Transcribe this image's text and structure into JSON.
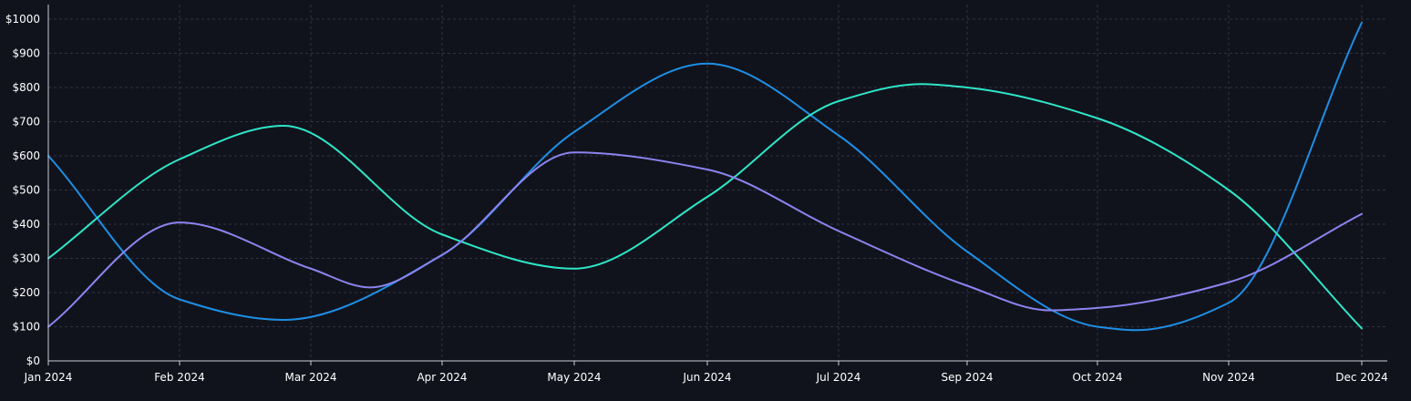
{
  "chart_data": {
    "type": "line",
    "title": "",
    "xlabel": "",
    "ylabel": "",
    "x": [
      "Jan 2024",
      "Feb 2024",
      "Mar 2024",
      "Apr 2024",
      "May 2024",
      "Jun 2024",
      "Jul 2024",
      "Sep 2024",
      "Oct 2024",
      "Nov 2024",
      "Dec 2024"
    ],
    "x_ticks": [
      "Jan 2024",
      "Feb 2024",
      "Mar 2024",
      "Apr 2024",
      "May 2024",
      "Jun 2024",
      "Jul 2024",
      "Sep 2024",
      "Oct 2024",
      "Nov 2024",
      "Dec 2024"
    ],
    "y_ticks": [
      "$0",
      "$100",
      "$200",
      "$300",
      "$400",
      "$500",
      "$600",
      "$700",
      "$800",
      "$900",
      "$1000"
    ],
    "ylim": [
      0,
      1000
    ],
    "grid": true,
    "legend": "none",
    "series": [
      {
        "color": "#1e8fe6",
        "points": [
          [
            "2024-01-01",
            600
          ],
          [
            "2024-02-01",
            180
          ],
          [
            "2024-02-24",
            120
          ],
          [
            "2024-04-01",
            310
          ],
          [
            "2024-05-01",
            670
          ],
          [
            "2024-06-01",
            870
          ],
          [
            "2024-07-01",
            660
          ],
          [
            "2024-09-01",
            320
          ],
          [
            "2024-10-01",
            100
          ],
          [
            "2024-10-10",
            90
          ],
          [
            "2024-11-01",
            170
          ],
          [
            "2024-12-01",
            990
          ]
        ]
      },
      {
        "color": "#2ee6c8",
        "points": [
          [
            "2024-01-01",
            300
          ],
          [
            "2024-02-01",
            590
          ],
          [
            "2024-02-24",
            688
          ],
          [
            "2024-04-01",
            370
          ],
          [
            "2024-05-01",
            270
          ],
          [
            "2024-06-01",
            480
          ],
          [
            "2024-07-01",
            760
          ],
          [
            "2024-08-10",
            810
          ],
          [
            "2024-09-01",
            800
          ],
          [
            "2024-10-01",
            710
          ],
          [
            "2024-11-01",
            500
          ],
          [
            "2024-12-01",
            95
          ]
        ]
      },
      {
        "color": "#8b84f0",
        "points": [
          [
            "2024-01-01",
            100
          ],
          [
            "2024-02-01",
            405
          ],
          [
            "2024-03-01",
            270
          ],
          [
            "2024-03-15",
            215
          ],
          [
            "2024-04-01",
            310
          ],
          [
            "2024-05-01",
            610
          ],
          [
            "2024-06-01",
            560
          ],
          [
            "2024-07-01",
            380
          ],
          [
            "2024-09-01",
            220
          ],
          [
            "2024-09-20",
            148
          ],
          [
            "2024-10-01",
            155
          ],
          [
            "2024-11-01",
            230
          ],
          [
            "2024-12-01",
            430
          ]
        ]
      }
    ]
  }
}
